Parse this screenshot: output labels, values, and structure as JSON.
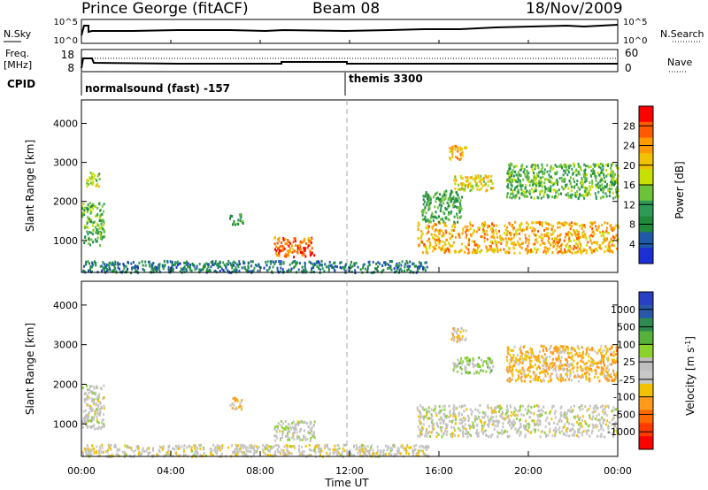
{
  "header": {
    "station": "Prince George (fitACF)",
    "beam": "Beam 08",
    "date": "18/Nov/2009"
  },
  "top_panel": {
    "left_label": "N.Sky",
    "left_ticks": [
      "10^5",
      "10^0"
    ],
    "right_ticks": [
      "10^5",
      "10^0"
    ],
    "right_label": "N.Search"
  },
  "freq_panel": {
    "left_label_1": "Freq.",
    "left_label_2": "[MHz]",
    "left_ticks": [
      "18",
      "8"
    ],
    "right_ticks": [
      "60",
      "0"
    ],
    "right_label": "Nave"
  },
  "cpid": {
    "label": "CPID",
    "segments": [
      "normalsound (fast) -157",
      "themis 3300"
    ]
  },
  "power_panel": {
    "ylabel": "Slant Range [km]",
    "yticks": [
      "4000",
      "3000",
      "2000",
      "1000"
    ],
    "colorbar_title": "Power [dB]",
    "colorbar_ticks": [
      "28",
      "24",
      "20",
      "16",
      "12",
      "8",
      "4"
    ],
    "colorbar_colors": [
      "#ff0000",
      "#ff5a00",
      "#ff9900",
      "#f2c200",
      "#c8e000",
      "#6ec23a",
      "#2e9a56",
      "#1e8a3a",
      "#1f5aa8",
      "#1c2fd2"
    ]
  },
  "velocity_panel": {
    "ylabel": "Slant Range [km]",
    "yticks": [
      "4000",
      "3000",
      "2000",
      "1000"
    ],
    "colorbar_title": "Velocity [m s",
    "colorbar_title_sup": "-1",
    "colorbar_title_end": "]",
    "colorbar_ticks": [
      "1000",
      "500",
      "100",
      "25",
      "-25",
      "-100",
      "-500",
      "-1000"
    ],
    "colorbar_colors": [
      "#2a3fc4",
      "#2a58a8",
      "#2e8a4e",
      "#56b23a",
      "#8cd22e",
      "#bfbfbf",
      "#c8c8c8",
      "#f2c200",
      "#ff9a1a",
      "#ff6a00",
      "#ff3a00",
      "#ff0000"
    ]
  },
  "x_axis": {
    "ticks": [
      "00:00",
      "04:00",
      "08:00",
      "12:00",
      "16:00",
      "20:00",
      "00:00"
    ],
    "label": "Time UT"
  },
  "chart_data": {
    "type": "heatmap",
    "title": "Prince George (fitACF)  Beam 08  18/Nov/2009",
    "xlabel": "Time UT",
    "ylabel": "Slant Range [km]",
    "xlim": [
      0,
      24
    ],
    "ylim": [
      180,
      4600
    ],
    "colorbars": [
      {
        "quantity": "Power [dB]",
        "ticks": [
          4,
          8,
          12,
          16,
          20,
          24,
          28
        ]
      },
      {
        "quantity": "Velocity [m s-1]",
        "ticks": [
          -1000,
          -500,
          -100,
          -25,
          25,
          100,
          500,
          1000
        ]
      }
    ],
    "cpid_segments": [
      {
        "name": "normalsound (fast) -157",
        "start_hour": 0,
        "end_hour": 12
      },
      {
        "name": "themis 3300",
        "start_hour": 12,
        "end_hour": 24
      }
    ],
    "power_regions": [
      {
        "t0": 0.0,
        "t1": 1.0,
        "r0": 900,
        "r1": 2000,
        "power_db": 12
      },
      {
        "t0": 0.2,
        "t1": 0.8,
        "r0": 2400,
        "r1": 2800,
        "power_db": 16
      },
      {
        "t0": 6.6,
        "t1": 7.2,
        "r0": 1400,
        "r1": 1700,
        "power_db": 10
      },
      {
        "t0": 8.6,
        "t1": 10.4,
        "r0": 600,
        "r1": 1100,
        "power_db": 26
      },
      {
        "t0": 15.0,
        "t1": 24.0,
        "r0": 700,
        "r1": 1500,
        "power_db": 22
      },
      {
        "t0": 15.2,
        "t1": 17.0,
        "r0": 1500,
        "r1": 2300,
        "power_db": 10
      },
      {
        "t0": 16.6,
        "t1": 18.4,
        "r0": 2300,
        "r1": 2700,
        "power_db": 18
      },
      {
        "t0": 16.4,
        "t1": 17.2,
        "r0": 3100,
        "r1": 3450,
        "power_db": 22
      },
      {
        "t0": 19.0,
        "t1": 24.0,
        "r0": 2100,
        "r1": 3000,
        "power_db": 12
      },
      {
        "t0": 0.0,
        "t1": 15.5,
        "r0": 200,
        "r1": 500,
        "power_db": 6
      }
    ],
    "velocity_regions": [
      {
        "t0": 0.0,
        "t1": 1.0,
        "r0": 900,
        "r1": 2000,
        "velocity": 0
      },
      {
        "t0": 6.6,
        "t1": 7.2,
        "r0": 1400,
        "r1": 1700,
        "velocity": -300
      },
      {
        "t0": 8.6,
        "t1": 10.4,
        "r0": 600,
        "r1": 1100,
        "velocity": 50
      },
      {
        "t0": 15.0,
        "t1": 24.0,
        "r0": 700,
        "r1": 1500,
        "velocity": 0
      },
      {
        "t0": 16.6,
        "t1": 18.4,
        "r0": 2300,
        "r1": 2700,
        "velocity": 150
      },
      {
        "t0": 16.4,
        "t1": 17.2,
        "r0": 3100,
        "r1": 3450,
        "velocity": -200
      },
      {
        "t0": 19.0,
        "t1": 24.0,
        "r0": 2100,
        "r1": 3000,
        "velocity": -300
      },
      {
        "t0": 0.0,
        "t1": 15.5,
        "r0": 200,
        "r1": 500,
        "velocity": -50
      }
    ]
  }
}
